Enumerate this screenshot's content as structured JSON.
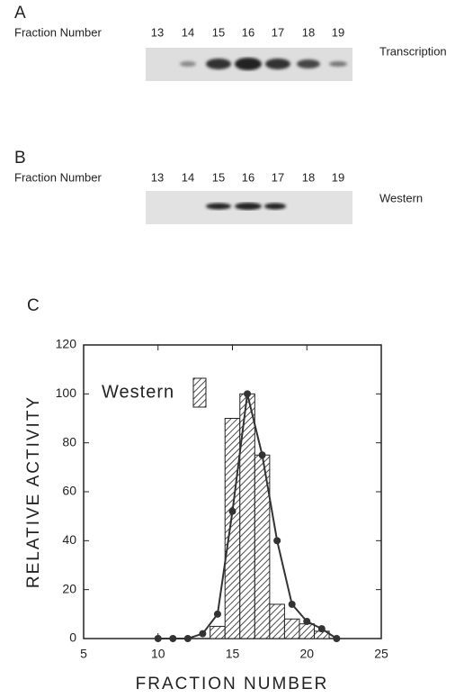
{
  "panel_a": {
    "label": "A",
    "axis_label": "Fraction Number",
    "fractions": [
      13,
      14,
      15,
      16,
      17,
      18,
      19
    ],
    "lane_label": "Transcription"
  },
  "panel_b": {
    "label": "B",
    "axis_label": "Fraction Number",
    "fractions": [
      13,
      14,
      15,
      16,
      17,
      18,
      19
    ],
    "lane_label": "Western"
  },
  "chart_data": {
    "type": "combo",
    "panel_label": "C",
    "xlabel": "FRACTION NUMBER",
    "ylabel": "RELATIVE ACTIVITY",
    "xlim": [
      5,
      25
    ],
    "xticks": [
      5,
      10,
      15,
      20,
      25
    ],
    "ylim": [
      0,
      120
    ],
    "yticks": [
      0,
      20,
      40,
      60,
      80,
      100,
      120
    ],
    "bars": {
      "name": "Western",
      "color": "#222222",
      "x": [
        14,
        15,
        16,
        17,
        18,
        19,
        20,
        21
      ],
      "values": [
        5,
        90,
        100,
        75,
        14,
        8,
        6,
        3
      ]
    },
    "line": {
      "color": "#333333",
      "x": [
        10,
        11,
        12,
        13,
        14,
        15,
        16,
        17,
        18,
        19,
        20,
        21,
        22
      ],
      "values": [
        0,
        0,
        0,
        2,
        10,
        52,
        100,
        75,
        40,
        14,
        7,
        4,
        0
      ]
    }
  }
}
